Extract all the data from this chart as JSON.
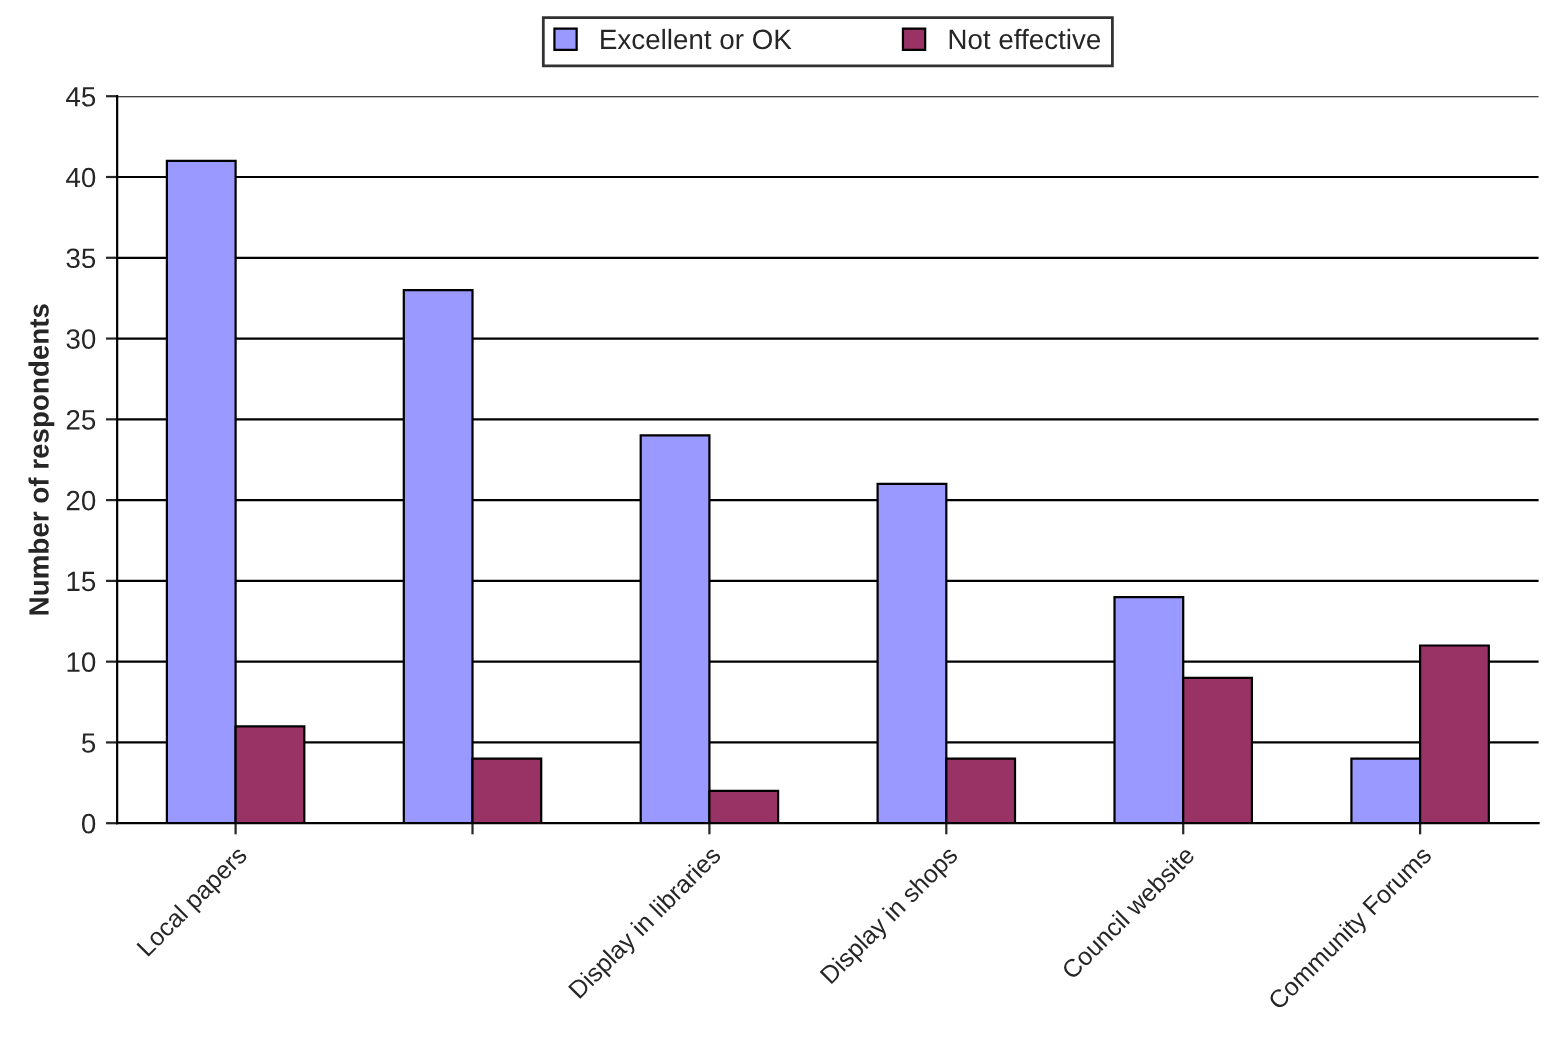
{
  "chart_data": {
    "type": "bar",
    "ylabel": "Number of respondents",
    "categories": [
      "Local papers",
      null,
      "Display in libraries",
      "Display in shops",
      "Council website",
      "Community Forums"
    ],
    "series": [
      {
        "name": "Excellent or OK",
        "color": "#9999ff",
        "values": [
          41,
          33,
          24,
          21,
          14,
          4
        ]
      },
      {
        "name": "Not effective",
        "color": "#993366",
        "values": [
          6,
          4,
          2,
          4,
          9,
          11
        ]
      }
    ],
    "ylim": [
      0,
      45
    ],
    "yticks": [
      0,
      5,
      10,
      15,
      20,
      25,
      30,
      35,
      40,
      45
    ],
    "grid": "y",
    "legend": "top"
  }
}
